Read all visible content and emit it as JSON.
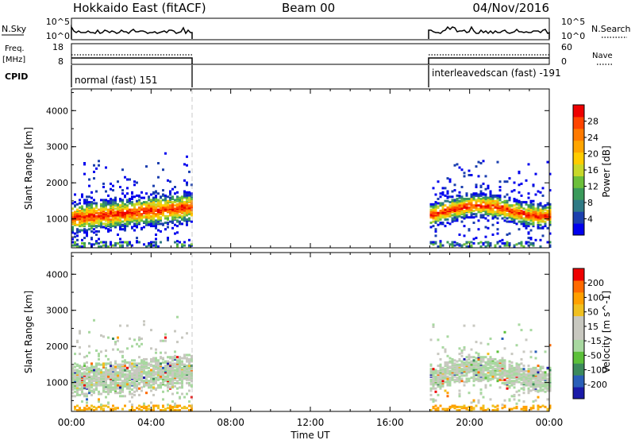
{
  "header": {
    "station": "Hokkaido East (fitACF)",
    "beam": "Beam 00",
    "date": "04/Nov/2016"
  },
  "panels": {
    "nsky_label": "N.Sky",
    "nsky_ticks": [
      "10^5",
      "10^0"
    ],
    "nsearch_label": "N.Search",
    "freq_label_top": "Freq.",
    "freq_label_bottom": "[MHz]",
    "freq_ticks": [
      "18",
      "8"
    ],
    "nave_label": "Nave",
    "nave_ticks": [
      "60",
      "0"
    ],
    "cpid_label": "CPID",
    "cpid_entries": [
      "normal (fast) 151",
      "interleavedscan (fast) -191"
    ]
  },
  "chart_data": [
    {
      "type": "heatmap",
      "name": "power",
      "ylabel": "Slant Range [km]",
      "ylim": [
        200,
        4600
      ],
      "yticks": [
        1000,
        2000,
        3000,
        4000
      ],
      "xlim": [
        0,
        24
      ],
      "xticks": [
        "00:00",
        "04:00",
        "08:00",
        "12:00",
        "16:00",
        "20:00",
        "00:00"
      ],
      "colorbar": {
        "label": "Power [dB]",
        "ticks": [
          "28",
          "24",
          "20",
          "16",
          "12",
          "8",
          "4"
        ],
        "colors": [
          "#0000ee",
          "#1b3fae",
          "#2f7a85",
          "#3a9a5a",
          "#6cbf3a",
          "#c8d82a",
          "#ffcc00",
          "#ffa500",
          "#ff7a00",
          "#ff4400",
          "#ee0000"
        ]
      },
      "data_windows": [
        {
          "start_ut": 0,
          "end_ut": 6
        },
        {
          "start_ut": 18,
          "end_ut": 24
        }
      ]
    },
    {
      "type": "heatmap",
      "name": "velocity",
      "ylabel": "Slant Range [km]",
      "ylim": [
        200,
        4600
      ],
      "yticks": [
        1000,
        2000,
        3000,
        4000
      ],
      "xlim": [
        0,
        24
      ],
      "xticks": [
        "00:00",
        "04:00",
        "08:00",
        "12:00",
        "16:00",
        "20:00",
        "00:00"
      ],
      "xlabel": "Time UT",
      "colorbar": {
        "label": "Velocity [m s^-1]",
        "ticks": [
          "200",
          "100",
          "50",
          "15",
          "-15",
          "-50",
          "-100",
          "-200"
        ],
        "colors": [
          "#1a1aa8",
          "#2a5fb8",
          "#3c8a5c",
          "#5cc03a",
          "#a8d8a0",
          "#c8c8c0",
          "#c8c8c0",
          "#f0c020",
          "#ffa000",
          "#ff6a00",
          "#ee0000"
        ]
      },
      "data_windows": [
        {
          "start_ut": 0,
          "end_ut": 6
        },
        {
          "start_ut": 18,
          "end_ut": 24
        }
      ]
    }
  ]
}
